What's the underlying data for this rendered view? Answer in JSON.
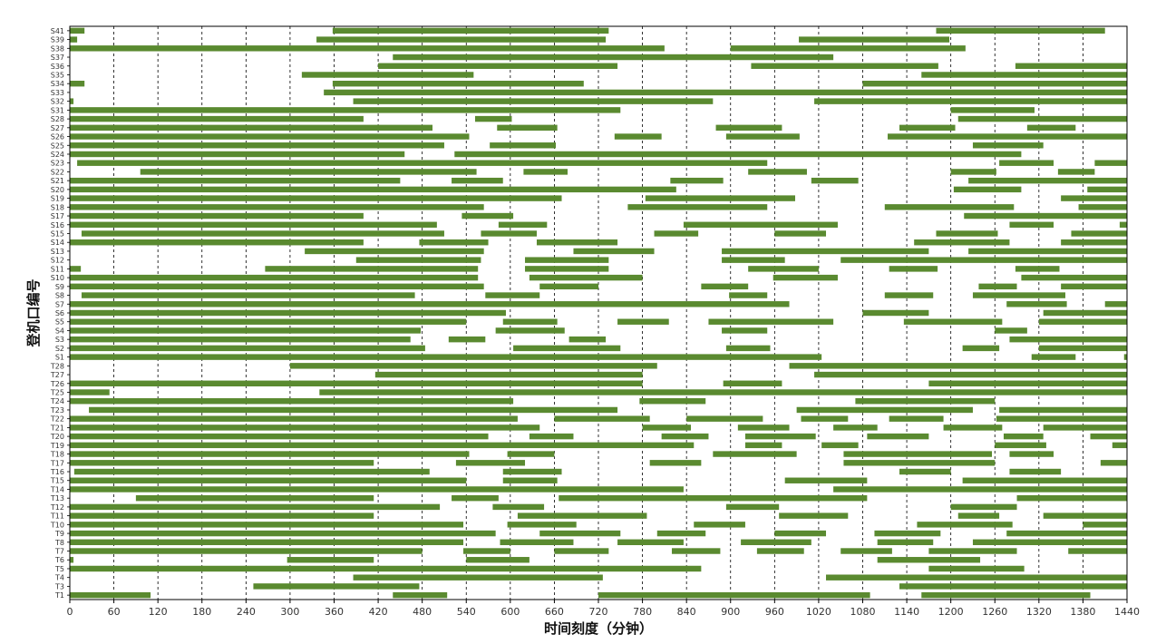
{
  "chart_data": {
    "type": "gantt",
    "title": "",
    "xlabel": "时间刻度（分钟）",
    "ylabel": "登机口编号",
    "xlim": [
      0,
      1440
    ],
    "x_ticks": [
      0,
      60,
      120,
      180,
      240,
      300,
      360,
      420,
      480,
      540,
      600,
      660,
      720,
      780,
      840,
      900,
      960,
      1020,
      1080,
      1140,
      1200,
      1260,
      1320,
      1380,
      1440
    ],
    "grid": "vertical dashed lines at each x tick",
    "bar_color": "#5a8a30",
    "rows": [
      {
        "gate": "S41",
        "intervals": [
          [
            0,
            20
          ],
          [
            358,
            734
          ],
          [
            1180,
            1410
          ]
        ]
      },
      {
        "gate": "S39",
        "intervals": [
          [
            0,
            10
          ],
          [
            336,
            730
          ],
          [
            993,
            1198
          ]
        ]
      },
      {
        "gate": "S38",
        "intervals": [
          [
            0,
            810
          ],
          [
            900,
            1220
          ]
        ]
      },
      {
        "gate": "S37",
        "intervals": [
          [
            440,
            1040
          ]
        ]
      },
      {
        "gate": "S36",
        "intervals": [
          [
            420,
            746
          ],
          [
            928,
            1183
          ],
          [
            1288,
            1440
          ]
        ]
      },
      {
        "gate": "S35",
        "intervals": [
          [
            316,
            550
          ],
          [
            1160,
            1440
          ]
        ]
      },
      {
        "gate": "S34",
        "intervals": [
          [
            0,
            20
          ],
          [
            358,
            700
          ],
          [
            1080,
            1440
          ]
        ]
      },
      {
        "gate": "S33",
        "intervals": [
          [
            346,
            1440
          ]
        ]
      },
      {
        "gate": "S32",
        "intervals": [
          [
            0,
            5
          ],
          [
            386,
            876
          ],
          [
            1014,
            1440
          ]
        ]
      },
      {
        "gate": "S31",
        "intervals": [
          [
            0,
            750
          ],
          [
            1200,
            1314
          ]
        ]
      },
      {
        "gate": "S28",
        "intervals": [
          [
            0,
            400
          ],
          [
            552,
            602
          ],
          [
            1210,
            1440
          ]
        ]
      },
      {
        "gate": "S27",
        "intervals": [
          [
            0,
            494
          ],
          [
            582,
            664
          ],
          [
            880,
            970
          ],
          [
            1130,
            1206
          ],
          [
            1304,
            1370
          ]
        ]
      },
      {
        "gate": "S26",
        "intervals": [
          [
            0,
            544
          ],
          [
            742,
            806
          ],
          [
            894,
            994
          ],
          [
            1114,
            1440
          ]
        ]
      },
      {
        "gate": "S25",
        "intervals": [
          [
            0,
            510
          ],
          [
            572,
            662
          ],
          [
            1230,
            1326
          ]
        ]
      },
      {
        "gate": "S24",
        "intervals": [
          [
            0,
            456
          ],
          [
            524,
            1296
          ]
        ]
      },
      {
        "gate": "S23",
        "intervals": [
          [
            10,
            950
          ],
          [
            1266,
            1340
          ],
          [
            1396,
            1440
          ]
        ]
      },
      {
        "gate": "S22",
        "intervals": [
          [
            96,
            554
          ],
          [
            618,
            678
          ],
          [
            924,
            1004
          ],
          [
            1200,
            1262
          ],
          [
            1346,
            1396
          ]
        ]
      },
      {
        "gate": "S21",
        "intervals": [
          [
            0,
            450
          ],
          [
            520,
            590
          ],
          [
            818,
            890
          ],
          [
            1010,
            1074
          ],
          [
            1224,
            1440
          ]
        ]
      },
      {
        "gate": "S20",
        "intervals": [
          [
            0,
            826
          ],
          [
            1204,
            1296
          ],
          [
            1386,
            1440
          ]
        ]
      },
      {
        "gate": "S19",
        "intervals": [
          [
            0,
            670
          ],
          [
            784,
            988
          ],
          [
            1350,
            1440
          ]
        ]
      },
      {
        "gate": "S18",
        "intervals": [
          [
            0,
            564
          ],
          [
            760,
            950
          ],
          [
            1110,
            1286
          ],
          [
            1374,
            1440
          ]
        ]
      },
      {
        "gate": "S17",
        "intervals": [
          [
            0,
            400
          ],
          [
            534,
            604
          ],
          [
            1218,
            1440
          ]
        ]
      },
      {
        "gate": "S16",
        "intervals": [
          [
            0,
            500
          ],
          [
            584,
            650
          ],
          [
            836,
            1046
          ],
          [
            1280,
            1340
          ],
          [
            1430,
            1440
          ]
        ]
      },
      {
        "gate": "S15",
        "intervals": [
          [
            16,
            510
          ],
          [
            560,
            636
          ],
          [
            796,
            856
          ],
          [
            960,
            1030
          ],
          [
            1180,
            1264
          ],
          [
            1364,
            1440
          ]
        ]
      },
      {
        "gate": "S14",
        "intervals": [
          [
            0,
            400
          ],
          [
            476,
            570
          ],
          [
            636,
            746
          ],
          [
            1150,
            1280
          ],
          [
            1350,
            1440
          ]
        ]
      },
      {
        "gate": "S13",
        "intervals": [
          [
            320,
            564
          ],
          [
            686,
            796
          ],
          [
            888,
            1170
          ],
          [
            1224,
            1440
          ]
        ]
      },
      {
        "gate": "S12",
        "intervals": [
          [
            390,
            560
          ],
          [
            620,
            734
          ],
          [
            888,
            974
          ],
          [
            1050,
            1440
          ]
        ]
      },
      {
        "gate": "S11",
        "intervals": [
          [
            0,
            15
          ],
          [
            266,
            556
          ],
          [
            620,
            734
          ],
          [
            924,
            1020
          ],
          [
            1116,
            1182
          ],
          [
            1288,
            1348
          ]
        ]
      },
      {
        "gate": "S10",
        "intervals": [
          [
            0,
            556
          ],
          [
            626,
            780
          ],
          [
            958,
            1046
          ],
          [
            1296,
            1440
          ]
        ]
      },
      {
        "gate": "S9",
        "intervals": [
          [
            0,
            564
          ],
          [
            640,
            720
          ],
          [
            860,
            924
          ],
          [
            1238,
            1290
          ],
          [
            1350,
            1440
          ]
        ]
      },
      {
        "gate": "S8",
        "intervals": [
          [
            16,
            470
          ],
          [
            566,
            640
          ],
          [
            898,
            950
          ],
          [
            1110,
            1176
          ],
          [
            1230,
            1356
          ]
        ]
      },
      {
        "gate": "S7",
        "intervals": [
          [
            0,
            980
          ],
          [
            1276,
            1358
          ],
          [
            1410,
            1440
          ]
        ]
      },
      {
        "gate": "S6",
        "intervals": [
          [
            0,
            594
          ],
          [
            1080,
            1170
          ],
          [
            1326,
            1440
          ]
        ]
      },
      {
        "gate": "S5",
        "intervals": [
          [
            0,
            540
          ],
          [
            590,
            664
          ],
          [
            746,
            816
          ],
          [
            870,
            1040
          ],
          [
            1136,
            1270
          ],
          [
            1320,
            1440
          ]
        ]
      },
      {
        "gate": "S4",
        "intervals": [
          [
            0,
            478
          ],
          [
            580,
            674
          ],
          [
            888,
            950
          ],
          [
            1260,
            1304
          ]
        ]
      },
      {
        "gate": "S3",
        "intervals": [
          [
            0,
            464
          ],
          [
            516,
            566
          ],
          [
            680,
            730
          ],
          [
            1280,
            1440
          ]
        ]
      },
      {
        "gate": "S2",
        "intervals": [
          [
            0,
            484
          ],
          [
            604,
            750
          ],
          [
            894,
            954
          ],
          [
            1216,
            1266
          ],
          [
            1320,
            1440
          ]
        ]
      },
      {
        "gate": "S1",
        "intervals": [
          [
            0,
            1024
          ],
          [
            1310,
            1370
          ],
          [
            1436,
            1440
          ]
        ]
      },
      {
        "gate": "T28",
        "intervals": [
          [
            300,
            800
          ],
          [
            980,
            1440
          ]
        ]
      },
      {
        "gate": "T27",
        "intervals": [
          [
            416,
            780
          ],
          [
            1014,
            1440
          ]
        ]
      },
      {
        "gate": "T26",
        "intervals": [
          [
            0,
            780
          ],
          [
            890,
            970
          ],
          [
            1170,
            1440
          ]
        ]
      },
      {
        "gate": "T25",
        "intervals": [
          [
            0,
            54
          ],
          [
            340,
            1440
          ]
        ]
      },
      {
        "gate": "T24",
        "intervals": [
          [
            0,
            604
          ],
          [
            776,
            866
          ],
          [
            1070,
            1260
          ]
        ]
      },
      {
        "gate": "T23",
        "intervals": [
          [
            26,
            746
          ],
          [
            990,
            1230
          ],
          [
            1266,
            1440
          ]
        ]
      },
      {
        "gate": "T22",
        "intervals": [
          [
            0,
            610
          ],
          [
            660,
            790
          ],
          [
            840,
            944
          ],
          [
            996,
            1060
          ],
          [
            1116,
            1190
          ],
          [
            1262,
            1440
          ]
        ]
      },
      {
        "gate": "T21",
        "intervals": [
          [
            0,
            640
          ],
          [
            780,
            846
          ],
          [
            910,
            980
          ],
          [
            1040,
            1100
          ],
          [
            1190,
            1270
          ],
          [
            1326,
            1440
          ]
        ]
      },
      {
        "gate": "T20",
        "intervals": [
          [
            0,
            570
          ],
          [
            626,
            686
          ],
          [
            806,
            870
          ],
          [
            920,
            1016
          ],
          [
            1086,
            1170
          ],
          [
            1272,
            1326
          ],
          [
            1390,
            1440
          ]
        ]
      },
      {
        "gate": "T19",
        "intervals": [
          [
            0,
            850
          ],
          [
            920,
            970
          ],
          [
            1024,
            1074
          ],
          [
            1260,
            1330
          ],
          [
            1420,
            1440
          ]
        ]
      },
      {
        "gate": "T18",
        "intervals": [
          [
            0,
            544
          ],
          [
            596,
            660
          ],
          [
            876,
            990
          ],
          [
            1054,
            1256
          ],
          [
            1280,
            1340
          ]
        ]
      },
      {
        "gate": "T17",
        "intervals": [
          [
            0,
            414
          ],
          [
            526,
            620
          ],
          [
            790,
            860
          ],
          [
            1054,
            1260
          ],
          [
            1404,
            1440
          ]
        ]
      },
      {
        "gate": "T16",
        "intervals": [
          [
            6,
            490
          ],
          [
            590,
            670
          ],
          [
            1130,
            1200
          ],
          [
            1280,
            1350
          ]
        ]
      },
      {
        "gate": "T15",
        "intervals": [
          [
            0,
            540
          ],
          [
            590,
            664
          ],
          [
            974,
            1086
          ],
          [
            1216,
            1440
          ]
        ]
      },
      {
        "gate": "T14",
        "intervals": [
          [
            0,
            836
          ],
          [
            1040,
            1440
          ]
        ]
      },
      {
        "gate": "T13",
        "intervals": [
          [
            90,
            414
          ],
          [
            520,
            584
          ],
          [
            666,
            1086
          ],
          [
            1290,
            1440
          ]
        ]
      },
      {
        "gate": "T12",
        "intervals": [
          [
            0,
            504
          ],
          [
            576,
            646
          ],
          [
            894,
            966
          ],
          [
            1200,
            1290
          ]
        ]
      },
      {
        "gate": "T11",
        "intervals": [
          [
            0,
            414
          ],
          [
            610,
            786
          ],
          [
            966,
            1060
          ],
          [
            1210,
            1266
          ],
          [
            1326,
            1440
          ]
        ]
      },
      {
        "gate": "T10",
        "intervals": [
          [
            0,
            536
          ],
          [
            596,
            690
          ],
          [
            850,
            920
          ],
          [
            1154,
            1284
          ],
          [
            1380,
            1440
          ]
        ]
      },
      {
        "gate": "T9",
        "intervals": [
          [
            0,
            580
          ],
          [
            640,
            750
          ],
          [
            800,
            866
          ],
          [
            960,
            1030
          ],
          [
            1096,
            1186
          ],
          [
            1276,
            1440
          ]
        ]
      },
      {
        "gate": "T8",
        "intervals": [
          [
            0,
            536
          ],
          [
            586,
            686
          ],
          [
            746,
            836
          ],
          [
            914,
            1010
          ],
          [
            1100,
            1176
          ],
          [
            1230,
            1440
          ]
        ]
      },
      {
        "gate": "T7",
        "intervals": [
          [
            0,
            480
          ],
          [
            536,
            600
          ],
          [
            660,
            734
          ],
          [
            820,
            886
          ],
          [
            936,
            1000
          ],
          [
            1050,
            1120
          ],
          [
            1170,
            1290
          ],
          [
            1360,
            1440
          ]
        ]
      },
      {
        "gate": "T6",
        "intervals": [
          [
            0,
            5
          ],
          [
            296,
            414
          ],
          [
            540,
            626
          ],
          [
            1100,
            1240
          ]
        ]
      },
      {
        "gate": "T5",
        "intervals": [
          [
            0,
            860
          ],
          [
            1170,
            1300
          ]
        ]
      },
      {
        "gate": "T4",
        "intervals": [
          [
            386,
            726
          ],
          [
            1030,
            1440
          ]
        ]
      },
      {
        "gate": "T3",
        "intervals": [
          [
            250,
            476
          ],
          [
            1130,
            1440
          ]
        ]
      },
      {
        "gate": "T1",
        "intervals": [
          [
            0,
            110
          ],
          [
            440,
            514
          ],
          [
            720,
            1090
          ],
          [
            1160,
            1390
          ]
        ]
      }
    ]
  }
}
